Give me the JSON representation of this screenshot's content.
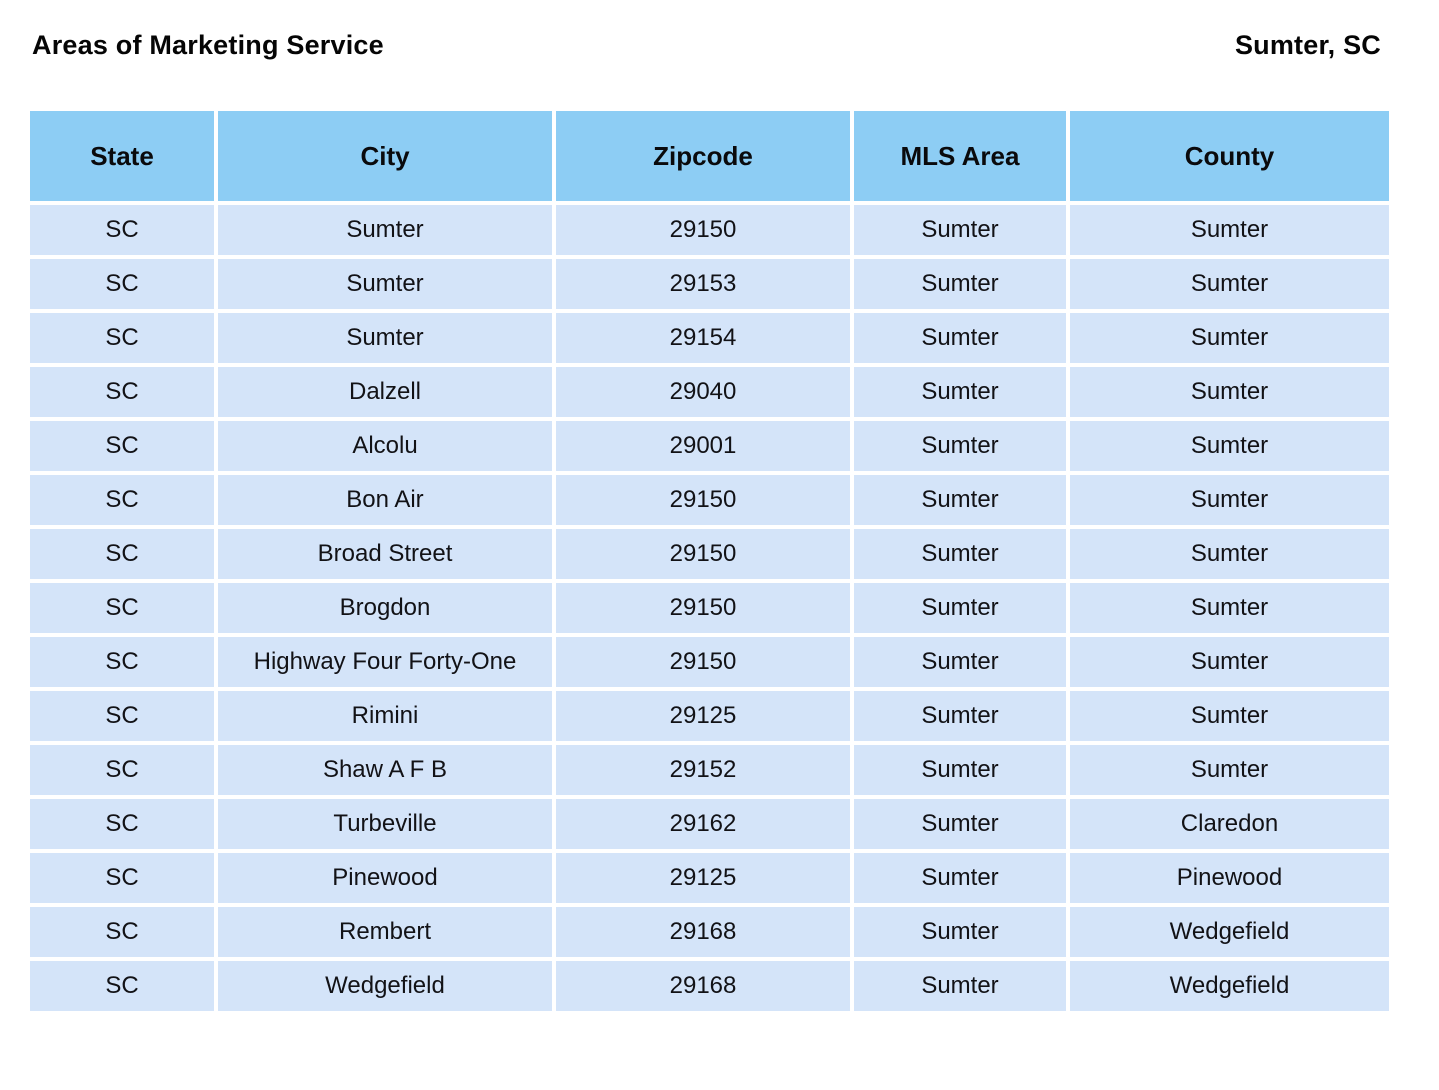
{
  "page": {
    "title": "Areas of Marketing Service",
    "location": "Sumter, SC"
  },
  "colors": {
    "header_bg": "#8dcdf4",
    "row_bg": "#d4e4f9",
    "text": "#0d0d0f"
  },
  "table": {
    "headers": [
      "State",
      "City",
      "Zipcode",
      "MLS Area",
      "County"
    ],
    "rows": [
      [
        "SC",
        "Sumter",
        "29150",
        "Sumter",
        "Sumter"
      ],
      [
        "SC",
        "Sumter",
        "29153",
        "Sumter",
        "Sumter"
      ],
      [
        "SC",
        "Sumter",
        "29154",
        "Sumter",
        "Sumter"
      ],
      [
        "SC",
        "Dalzell",
        "29040",
        "Sumter",
        "Sumter"
      ],
      [
        "SC",
        "Alcolu",
        "29001",
        "Sumter",
        "Sumter"
      ],
      [
        "SC",
        "Bon Air",
        "29150",
        "Sumter",
        "Sumter"
      ],
      [
        "SC",
        "Broad Street",
        "29150",
        "Sumter",
        "Sumter"
      ],
      [
        "SC",
        "Brogdon",
        "29150",
        "Sumter",
        "Sumter"
      ],
      [
        "SC",
        "Highway Four Forty-One",
        "29150",
        "Sumter",
        "Sumter"
      ],
      [
        "SC",
        "Rimini",
        "29125",
        "Sumter",
        "Sumter"
      ],
      [
        "SC",
        "Shaw A F B",
        "29152",
        "Sumter",
        "Sumter"
      ],
      [
        "SC",
        "Turbeville",
        "29162",
        "Sumter",
        "Claredon"
      ],
      [
        "SC",
        "Pinewood",
        "29125",
        "Sumter",
        "Pinewood"
      ],
      [
        "SC",
        "Rembert",
        "29168",
        "Sumter",
        "Wedgefield"
      ],
      [
        "SC",
        "Wedgefield",
        "29168",
        "Sumter",
        "Wedgefield"
      ]
    ]
  }
}
